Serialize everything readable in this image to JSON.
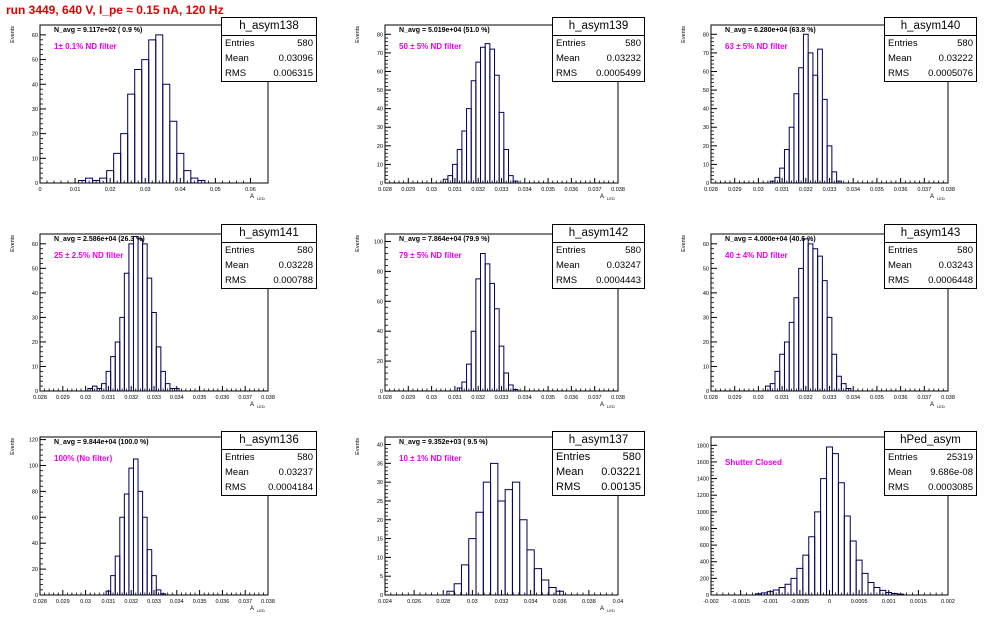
{
  "page": {
    "title": "run 3449,   640 V, I_pe ≈ 0.15 nA, 120 Hz",
    "colors": {
      "title": "#e00000",
      "histogram": "#00005a",
      "annotation": "#e600e6"
    }
  },
  "chart_data": [
    {
      "type": "histogram",
      "stats": {
        "name": "h_asym138",
        "entries": "580",
        "mean": "0.03096",
        "rms": "0.006315"
      },
      "navg": "N_avg = 9.117e+02 ( 0.9 %)",
      "filter": "1± 0.1% ND filter",
      "ylabel": "Events",
      "xlabel": "A",
      "xlabel_sub": "LED",
      "xlim": [
        0,
        0.065
      ],
      "ylim": [
        0,
        64
      ],
      "xticks": [
        0,
        0.01,
        0.02,
        0.03,
        0.04,
        0.05,
        0.06
      ],
      "xtick_labels": [
        "0",
        "0.01",
        "0.02",
        "0.03",
        "0.04",
        "0.05",
        "0.06"
      ],
      "yticks": [
        0,
        10,
        20,
        30,
        40,
        50,
        60
      ],
      "ytick_labels": [
        "0",
        "10",
        "20",
        "30",
        "40",
        "50",
        "60"
      ],
      "x": [
        0.012,
        0.014,
        0.016,
        0.018,
        0.02,
        0.022,
        0.024,
        0.026,
        0.028,
        0.03,
        0.032,
        0.034,
        0.036,
        0.038,
        0.04,
        0.042,
        0.044,
        0.046
      ],
      "values": [
        1,
        2,
        1,
        2,
        5,
        12,
        20,
        36,
        46,
        50,
        58,
        60,
        40,
        25,
        12,
        5,
        2,
        1
      ]
    },
    {
      "type": "histogram",
      "stats": {
        "name": "h_asym139",
        "entries": "580",
        "mean": "0.03232",
        "rms": "0.0005499"
      },
      "navg": "N_avg = 5.019e+04 (51.0 %)",
      "filter": "50 ± 5% ND filter",
      "ylabel": "Events",
      "xlabel": "A",
      "xlabel_sub": "LED",
      "xlim": [
        0.028,
        0.038
      ],
      "ylim": [
        0,
        85
      ],
      "xticks": [
        0.028,
        0.029,
        0.03,
        0.031,
        0.032,
        0.033,
        0.034,
        0.035,
        0.036,
        0.037,
        0.038
      ],
      "xtick_labels": [
        "0.028",
        "0.029",
        "0.03",
        "0.031",
        "0.032",
        "0.033",
        "0.034",
        "0.035",
        "0.036",
        "0.037",
        "0.038"
      ],
      "yticks": [
        0,
        10,
        20,
        30,
        40,
        50,
        60,
        70,
        80
      ],
      "ytick_labels": [
        "0",
        "10",
        "20",
        "30",
        "40",
        "50",
        "60",
        "70",
        "80"
      ],
      "x": [
        0.0306,
        0.0308,
        0.031,
        0.0312,
        0.0314,
        0.0316,
        0.0318,
        0.032,
        0.0322,
        0.0324,
        0.0326,
        0.0328,
        0.033,
        0.0332,
        0.0334,
        0.0336
      ],
      "values": [
        2,
        4,
        10,
        18,
        28,
        40,
        55,
        65,
        73,
        75,
        72,
        58,
        38,
        18,
        4,
        1
      ]
    },
    {
      "type": "histogram",
      "stats": {
        "name": "h_asym140",
        "entries": "580",
        "mean": "0.03222",
        "rms": "0.0005076"
      },
      "navg": "N_avg = 6.280e+04 (63.8 %)",
      "filter": "63 ± 5% ND filter",
      "ylabel": "Events",
      "xlabel": "A",
      "xlabel_sub": "LED",
      "xlim": [
        0.028,
        0.038
      ],
      "ylim": [
        0,
        85
      ],
      "xticks": [
        0.028,
        0.029,
        0.03,
        0.031,
        0.032,
        0.033,
        0.034,
        0.035,
        0.036,
        0.037,
        0.038
      ],
      "xtick_labels": [
        "0.028",
        "0.029",
        "0.03",
        "0.031",
        "0.032",
        "0.033",
        "0.034",
        "0.035",
        "0.036",
        "0.037",
        "0.038"
      ],
      "yticks": [
        0,
        10,
        20,
        30,
        40,
        50,
        60,
        70,
        80
      ],
      "ytick_labels": [
        "0",
        "10",
        "20",
        "30",
        "40",
        "50",
        "60",
        "70",
        "80"
      ],
      "x": [
        0.0306,
        0.0308,
        0.031,
        0.0312,
        0.0314,
        0.0316,
        0.0318,
        0.032,
        0.0322,
        0.0324,
        0.0326,
        0.0328,
        0.033,
        0.0332,
        0.0334
      ],
      "values": [
        1,
        3,
        8,
        18,
        30,
        48,
        62,
        80,
        70,
        58,
        72,
        45,
        20,
        6,
        1
      ]
    },
    {
      "type": "histogram",
      "stats": {
        "name": "h_asym141",
        "entries": "580",
        "mean": "0.03228",
        "rms": "0.000788"
      },
      "navg": "N_avg = 2.586e+04 (26.3 %)",
      "filter": "25 ± 2.5% ND filter",
      "ylabel": "Events",
      "xlabel": "A",
      "xlabel_sub": "LED",
      "xlim": [
        0.028,
        0.038
      ],
      "ylim": [
        0,
        64
      ],
      "xticks": [
        0.028,
        0.029,
        0.03,
        0.031,
        0.032,
        0.033,
        0.034,
        0.035,
        0.036,
        0.037,
        0.038
      ],
      "xtick_labels": [
        "0.028",
        "0.029",
        "0.03",
        "0.031",
        "0.032",
        "0.033",
        "0.034",
        "0.035",
        "0.036",
        "0.037",
        "0.038"
      ],
      "yticks": [
        0,
        10,
        20,
        30,
        40,
        50,
        60
      ],
      "ytick_labels": [
        "0",
        "10",
        "20",
        "30",
        "40",
        "50",
        "60"
      ],
      "x": [
        0.0302,
        0.0304,
        0.0306,
        0.0308,
        0.031,
        0.0312,
        0.0314,
        0.0316,
        0.0318,
        0.032,
        0.0322,
        0.0324,
        0.0326,
        0.0328,
        0.033,
        0.0332,
        0.0334,
        0.0336,
        0.0338,
        0.034
      ],
      "values": [
        1,
        2,
        1,
        3,
        8,
        14,
        20,
        30,
        48,
        60,
        63,
        62,
        60,
        46,
        32,
        18,
        8,
        3,
        1,
        1
      ]
    },
    {
      "type": "histogram",
      "stats": {
        "name": "h_asym142",
        "entries": "580",
        "mean": "0.03247",
        "rms": "0.0004443"
      },
      "navg": "N_avg = 7.864e+04 (79.9 %)",
      "filter": "79 ± 5% ND filter",
      "ylabel": "Events",
      "xlabel": "A",
      "xlabel_sub": "LED",
      "xlim": [
        0.028,
        0.038
      ],
      "ylim": [
        0,
        105
      ],
      "xticks": [
        0.028,
        0.029,
        0.03,
        0.031,
        0.032,
        0.033,
        0.034,
        0.035,
        0.036,
        0.037,
        0.038
      ],
      "xtick_labels": [
        "0.028",
        "0.029",
        "0.03",
        "0.031",
        "0.032",
        "0.033",
        "0.034",
        "0.035",
        "0.036",
        "0.037",
        "0.038"
      ],
      "yticks": [
        0,
        20,
        40,
        60,
        80,
        100
      ],
      "ytick_labels": [
        "0",
        "20",
        "40",
        "60",
        "80",
        "100"
      ],
      "x": [
        0.0312,
        0.0314,
        0.0316,
        0.0318,
        0.032,
        0.0322,
        0.0324,
        0.0326,
        0.0328,
        0.033,
        0.0332,
        0.0334,
        0.0336
      ],
      "values": [
        2,
        6,
        18,
        40,
        75,
        92,
        85,
        72,
        55,
        30,
        12,
        4,
        1
      ]
    },
    {
      "type": "histogram",
      "stats": {
        "name": "h_asym143",
        "entries": "580",
        "mean": "0.03243",
        "rms": "0.0006448"
      },
      "navg": "N_avg = 4.000e+04 (40.6 %)",
      "filter": "40 ± 4% ND filter",
      "ylabel": "Events",
      "xlabel": "A",
      "xlabel_sub": "LED",
      "xlim": [
        0.028,
        0.038
      ],
      "ylim": [
        0,
        64
      ],
      "xticks": [
        0.028,
        0.029,
        0.03,
        0.031,
        0.032,
        0.033,
        0.034,
        0.035,
        0.036,
        0.037,
        0.038
      ],
      "xtick_labels": [
        "0.028",
        "0.029",
        "0.03",
        "0.031",
        "0.032",
        "0.033",
        "0.034",
        "0.035",
        "0.036",
        "0.037",
        "0.038"
      ],
      "yticks": [
        0,
        10,
        20,
        30,
        40,
        50,
        60
      ],
      "ytick_labels": [
        "0",
        "10",
        "20",
        "30",
        "40",
        "50",
        "60"
      ],
      "x": [
        0.0304,
        0.0306,
        0.0308,
        0.031,
        0.0312,
        0.0314,
        0.0316,
        0.0318,
        0.032,
        0.0322,
        0.0324,
        0.0326,
        0.0328,
        0.033,
        0.0332,
        0.0334,
        0.0336,
        0.0338
      ],
      "values": [
        2,
        3,
        8,
        15,
        20,
        28,
        38,
        50,
        62,
        60,
        58,
        55,
        45,
        30,
        15,
        6,
        3,
        1
      ]
    },
    {
      "type": "histogram",
      "stats": {
        "name": "h_asym136",
        "entries": "580",
        "mean": "0.03237",
        "rms": "0.0004184"
      },
      "navg": "N_avg = 9.844e+04 (100.0 %)",
      "filter": "100% (No filter)",
      "ylabel": "Events",
      "xlabel": "A",
      "xlabel_sub": "LED",
      "xlim": [
        0.028,
        0.038
      ],
      "ylim": [
        0,
        122
      ],
      "xticks": [
        0.028,
        0.029,
        0.03,
        0.031,
        0.032,
        0.033,
        0.034,
        0.035,
        0.036,
        0.037,
        0.038
      ],
      "xtick_labels": [
        "0.028",
        "0.029",
        "0.03",
        "0.031",
        "0.032",
        "0.033",
        "0.034",
        "0.035",
        "0.036",
        "0.037",
        "0.038"
      ],
      "yticks": [
        0,
        20,
        40,
        60,
        80,
        100,
        120
      ],
      "ytick_labels": [
        "0",
        "20",
        "40",
        "60",
        "80",
        "100",
        "120"
      ],
      "x": [
        0.031,
        0.0312,
        0.0314,
        0.0316,
        0.0318,
        0.032,
        0.0322,
        0.0324,
        0.0326,
        0.0328,
        0.033,
        0.0332,
        0.0334
      ],
      "values": [
        3,
        15,
        30,
        60,
        78,
        98,
        105,
        80,
        60,
        35,
        15,
        4,
        1
      ]
    },
    {
      "type": "histogram",
      "stats": {
        "name": "h_asym137",
        "entries": "580",
        "mean": "0.03221",
        "rms": "0.00135"
      },
      "navg": "N_avg = 9.352e+03 ( 9.5 %)",
      "filter": "10 ± 1% ND filter",
      "ylabel": "Events",
      "xlabel": "A",
      "xlabel_sub": "LED",
      "xlim": [
        0.024,
        0.04
      ],
      "ylim": [
        0,
        42
      ],
      "xticks": [
        0.024,
        0.026,
        0.028,
        0.03,
        0.032,
        0.034,
        0.036,
        0.038,
        0.04
      ],
      "xtick_labels": [
        "0.024",
        "0.026",
        "0.028",
        "0.03",
        "0.032",
        "0.034",
        "0.036",
        "0.038",
        "0.04"
      ],
      "yticks": [
        0,
        5,
        10,
        15,
        20,
        25,
        30,
        35,
        40
      ],
      "ytick_labels": [
        "0",
        "5",
        "10",
        "15",
        "20",
        "25",
        "30",
        "35",
        "40"
      ],
      "x": [
        0.0285,
        0.029,
        0.0295,
        0.03,
        0.0305,
        0.031,
        0.0315,
        0.032,
        0.0325,
        0.033,
        0.0335,
        0.034,
        0.0345,
        0.035,
        0.0355,
        0.036
      ],
      "values": [
        1,
        3,
        8,
        15,
        22,
        30,
        35,
        25,
        28,
        30,
        20,
        12,
        7,
        4,
        2,
        1
      ]
    },
    {
      "type": "histogram",
      "stats": {
        "name": "hPed_asym",
        "entries": "25319",
        "mean": "9.686e-08",
        "rms": "0.0003085"
      },
      "navg": "",
      "filter": "Shutter Closed",
      "ylabel": "",
      "xlabel": "",
      "xlabel_sub": "",
      "xlim": [
        -0.002,
        0.002
      ],
      "ylim": [
        0,
        1900
      ],
      "xticks": [
        -0.002,
        -0.0015,
        -0.001,
        -0.0005,
        0,
        0.0005,
        0.001,
        0.0015,
        0.002
      ],
      "xtick_labels": [
        "-0.002",
        "-0.0015",
        "-0.001",
        "-0.0005",
        "0",
        "0.0005",
        "0.001",
        "0.0015",
        "0.002"
      ],
      "yticks": [
        0,
        200,
        400,
        600,
        800,
        1000,
        1200,
        1400,
        1600,
        1800
      ],
      "ytick_labels": [
        "0",
        "200",
        "400",
        "600",
        "800",
        "1000",
        "1200",
        "1400",
        "1600",
        "1800"
      ],
      "x": [
        -0.0012,
        -0.0011,
        -0.001,
        -0.0009,
        -0.0008,
        -0.0007,
        -0.0006,
        -0.0005,
        -0.0004,
        -0.0003,
        -0.0002,
        -0.0001,
        0,
        0.0001,
        0.0002,
        0.0003,
        0.0004,
        0.0005,
        0.0006,
        0.0007,
        0.0008,
        0.0009,
        0.001,
        0.0011,
        0.0012
      ],
      "values": [
        15,
        25,
        40,
        60,
        90,
        130,
        200,
        320,
        480,
        700,
        1000,
        1400,
        1780,
        1700,
        1350,
        950,
        650,
        420,
        260,
        150,
        90,
        55,
        30,
        18,
        10
      ]
    }
  ]
}
